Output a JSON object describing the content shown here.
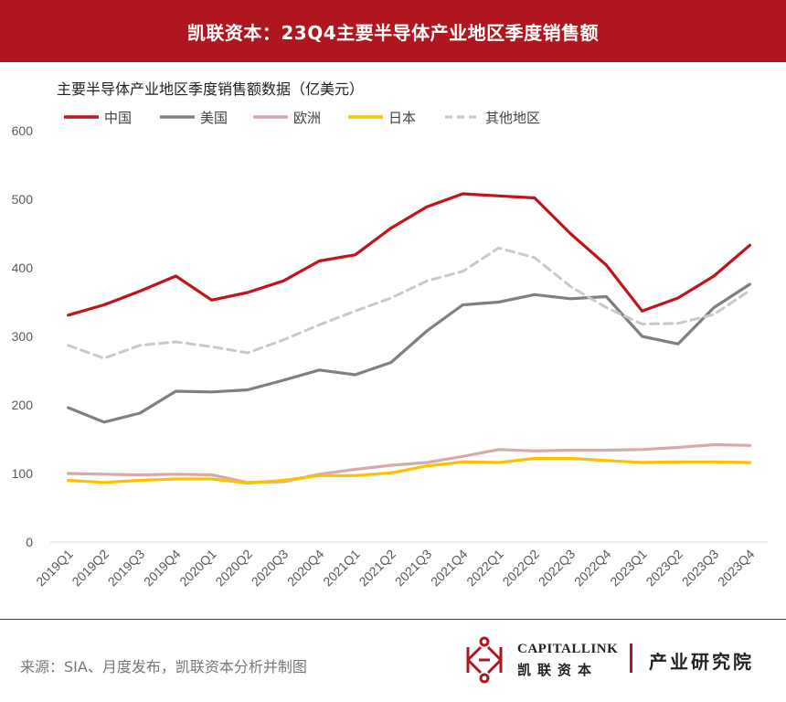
{
  "header": {
    "title": "凯联资本：23Q4主要半导体产业地区季度销售额"
  },
  "footer": {
    "source": "来源：SIA、月度发布，凯联资本分析并制图",
    "brand_en": "CAPITALLINK",
    "brand_cn": "凯联资本",
    "institute": "产业研究院"
  },
  "colors": {
    "banner": "#b0161e",
    "china": "#c0141c",
    "usa": "#7f7f7f",
    "europe": "#d8a9ab",
    "japan": "#ffc000",
    "others": "#c8c8c8"
  },
  "chart_data": {
    "type": "line",
    "title": "主要半导体产业地区季度销售额数据（亿美元）",
    "xlabel": "",
    "ylabel": "",
    "ylim": [
      0,
      600
    ],
    "yticks": [
      0,
      100,
      200,
      300,
      400,
      500,
      600
    ],
    "grid": false,
    "legend_position": "top-left",
    "categories": [
      "2019Q1",
      "2019Q2",
      "2019Q3",
      "2019Q4",
      "2020Q1",
      "2020Q2",
      "2020Q3",
      "2020Q4",
      "2021Q1",
      "2021Q2",
      "2021Q3",
      "2021Q4",
      "2022Q1",
      "2022Q2",
      "2022Q3",
      "2022Q4",
      "2023Q1",
      "2023Q2",
      "2023Q3",
      "2023Q4"
    ],
    "series": [
      {
        "name": "中国",
        "color": "#c0141c",
        "dash": false,
        "values": [
          331,
          346,
          366,
          388,
          353,
          364,
          381,
          410,
          419,
          458,
          489,
          508,
          505,
          502,
          450,
          404,
          337,
          356,
          388,
          433
        ]
      },
      {
        "name": "美国",
        "color": "#7f7f7f",
        "dash": false,
        "values": [
          196,
          175,
          188,
          220,
          219,
          222,
          236,
          251,
          244,
          262,
          308,
          346,
          350,
          361,
          355,
          358,
          300,
          289,
          342,
          376
        ]
      },
      {
        "name": "欧洲",
        "color": "#d8a9ab",
        "dash": false,
        "values": [
          100,
          99,
          98,
          99,
          98,
          87,
          88,
          99,
          106,
          112,
          116,
          125,
          135,
          133,
          134,
          134,
          135,
          138,
          142,
          141
        ]
      },
      {
        "name": "日本",
        "color": "#ffc000",
        "dash": false,
        "values": [
          90,
          87,
          90,
          92,
          92,
          86,
          90,
          97,
          97,
          101,
          111,
          117,
          116,
          122,
          122,
          119,
          116,
          117,
          117,
          116
        ]
      },
      {
        "name": "其他地区",
        "color": "#c8c8c8",
        "dash": true,
        "values": [
          287,
          268,
          287,
          292,
          285,
          276,
          295,
          317,
          337,
          356,
          381,
          395,
          429,
          415,
          373,
          342,
          318,
          319,
          332,
          367
        ]
      }
    ]
  }
}
